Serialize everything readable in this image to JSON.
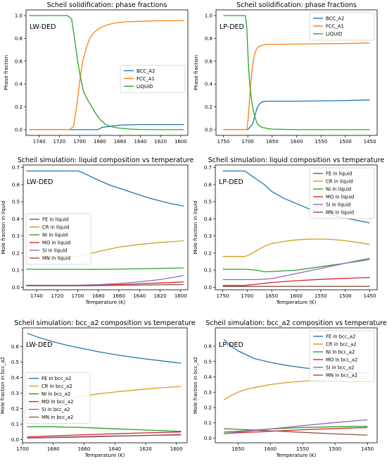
{
  "colors": {
    "blue": "#1f77b4",
    "orange": "#ff7f0e",
    "green": "#2ca02c",
    "red": "#d62728",
    "purple": "#9467bd",
    "brown": "#8c564b",
    "gold": "#d4a017"
  },
  "chart_data": [
    {
      "type": "line",
      "title": "Scheil solidification: phase fractions",
      "xlabel": "",
      "ylabel": "Phase fraction",
      "annotation": "LW-DED",
      "xlim": [
        1753,
        1593
      ],
      "ylim": [
        -0.05,
        1.05
      ],
      "x_reversed": true,
      "xticks": [
        1740,
        1720,
        1700,
        1680,
        1660,
        1640,
        1620,
        1600
      ],
      "yticks": [
        0.0,
        0.2,
        0.4,
        0.6,
        0.8,
        1.0
      ],
      "ytick_decimals": 1,
      "legend": "right",
      "series": [
        {
          "name": "BCC_A2",
          "color": "#1f77b4",
          "x": [
            1750,
            1700,
            1690,
            1682,
            1678,
            1670,
            1660,
            1640,
            1620,
            1600,
            1597
          ],
          "y": [
            0,
            0,
            0,
            0,
            0.02,
            0.03,
            0.04,
            0.045,
            0.045,
            0.045,
            0.045
          ]
        },
        {
          "name": "FCC_A1",
          "color": "#ff7f0e",
          "x": [
            1750,
            1710,
            1706,
            1703,
            1700,
            1697,
            1693,
            1690,
            1686,
            1682,
            1678,
            1672,
            1665,
            1655,
            1640,
            1620,
            1600,
            1597
          ],
          "y": [
            0,
            0,
            0.03,
            0.2,
            0.42,
            0.6,
            0.73,
            0.8,
            0.85,
            0.88,
            0.9,
            0.92,
            0.935,
            0.945,
            0.95,
            0.955,
            0.955,
            0.955
          ]
        },
        {
          "name": "LIQUID",
          "color": "#2ca02c",
          "x": [
            1750,
            1712,
            1708,
            1705,
            1702,
            1699,
            1696,
            1692,
            1688,
            1684,
            1680,
            1675,
            1670,
            1662,
            1650,
            1640,
            1620,
            1600,
            1597
          ],
          "y": [
            1.0,
            1.0,
            0.97,
            0.8,
            0.6,
            0.45,
            0.33,
            0.26,
            0.2,
            0.14,
            0.09,
            0.05,
            0.03,
            0.015,
            0.005,
            0.002,
            0.0,
            0.0,
            0.0
          ]
        }
      ]
    },
    {
      "type": "line",
      "title": "Scheil solidification: phase fractions",
      "xlabel": "",
      "ylabel": "Phase fraction",
      "annotation": "LP-DED",
      "xlim": [
        1765,
        1435
      ],
      "ylim": [
        -0.05,
        1.05
      ],
      "x_reversed": true,
      "xticks": [
        1750,
        1700,
        1650,
        1600,
        1550,
        1500,
        1450
      ],
      "yticks": [
        0.0,
        0.2,
        0.4,
        0.6,
        0.8,
        1.0
      ],
      "ytick_decimals": 1,
      "legend": "top-right",
      "series": [
        {
          "name": "BCC_A2",
          "color": "#1f77b4",
          "x": [
            1750,
            1700,
            1690,
            1685,
            1680,
            1675,
            1670,
            1660,
            1600,
            1500,
            1450
          ],
          "y": [
            0,
            0,
            0.05,
            0.13,
            0.2,
            0.23,
            0.245,
            0.25,
            0.25,
            0.255,
            0.26
          ]
        },
        {
          "name": "FCC_A1",
          "color": "#ff7f0e",
          "x": [
            1750,
            1702,
            1699,
            1696,
            1692,
            1688,
            1684,
            1680,
            1675,
            1665,
            1650,
            1600,
            1500,
            1450
          ],
          "y": [
            0,
            0,
            0.1,
            0.3,
            0.5,
            0.62,
            0.69,
            0.72,
            0.735,
            0.745,
            0.748,
            0.75,
            0.755,
            0.76
          ]
        },
        {
          "name": "LIQUID",
          "color": "#2ca02c",
          "x": [
            1750,
            1705,
            1702,
            1699,
            1696,
            1692,
            1688,
            1684,
            1680,
            1675,
            1670,
            1660,
            1650,
            1600,
            1500,
            1450
          ],
          "y": [
            1.0,
            1.0,
            0.9,
            0.6,
            0.4,
            0.25,
            0.15,
            0.09,
            0.05,
            0.03,
            0.02,
            0.01,
            0.005,
            0.0,
            0.0,
            0.0
          ]
        }
      ]
    },
    {
      "type": "line",
      "title": "Scheil simulation: liquid composition vs temperature",
      "xlabel": "Temperature (K)",
      "ylabel": "Mole fraction in liquid",
      "annotation": "LW-DED",
      "xlim": [
        1753,
        1593
      ],
      "ylim": [
        -0.015,
        0.715
      ],
      "x_reversed": true,
      "xticks": [
        1740,
        1720,
        1700,
        1680,
        1660,
        1640,
        1620,
        1600
      ],
      "yticks": [
        0.0,
        0.1,
        0.2,
        0.3,
        0.4,
        0.5,
        0.6,
        0.7
      ],
      "ytick_decimals": 1,
      "legend": "center-left",
      "series": [
        {
          "name": "FE in liquid",
          "color": "#1f77b4",
          "x": [
            1750,
            1700,
            1695,
            1685,
            1670,
            1650,
            1630,
            1610,
            1597
          ],
          "y": [
            0.68,
            0.68,
            0.67,
            0.64,
            0.6,
            0.56,
            0.52,
            0.49,
            0.475
          ]
        },
        {
          "name": "CR in liquid",
          "color": "#d4a017",
          "x": [
            1750,
            1700,
            1690,
            1675,
            1660,
            1640,
            1620,
            1600,
            1597
          ],
          "y": [
            0.18,
            0.18,
            0.195,
            0.215,
            0.235,
            0.25,
            0.262,
            0.27,
            0.272
          ]
        },
        {
          "name": "NI in liquid",
          "color": "#2ca02c",
          "x": [
            1750,
            1700,
            1690,
            1670,
            1650,
            1630,
            1610,
            1597
          ],
          "y": [
            0.105,
            0.105,
            0.104,
            0.105,
            0.107,
            0.109,
            0.111,
            0.113
          ]
        },
        {
          "name": "MO in liquid",
          "color": "#d62728",
          "x": [
            1750,
            1700,
            1680,
            1660,
            1640,
            1620,
            1600,
            1597
          ],
          "y": [
            0.01,
            0.01,
            0.012,
            0.015,
            0.02,
            0.025,
            0.03,
            0.032
          ]
        },
        {
          "name": "SI in liquid",
          "color": "#9467bd",
          "x": [
            1750,
            1700,
            1680,
            1660,
            1640,
            1620,
            1600,
            1597
          ],
          "y": [
            0.012,
            0.012,
            0.015,
            0.022,
            0.032,
            0.045,
            0.065,
            0.07
          ]
        },
        {
          "name": "MN in liquid",
          "color": "#8c564b",
          "x": [
            1750,
            1700,
            1650,
            1597
          ],
          "y": [
            0.008,
            0.008,
            0.012,
            0.016
          ]
        }
      ]
    },
    {
      "type": "line",
      "title": "Scheil simulation: liquid composition vs temperature",
      "xlabel": "Temperature (K)",
      "ylabel": "Mole fraction in liquid",
      "annotation": "LP-DED",
      "xlim": [
        1765,
        1435
      ],
      "ylim": [
        -0.015,
        0.715
      ],
      "x_reversed": true,
      "xticks": [
        1750,
        1700,
        1650,
        1600,
        1550,
        1500,
        1450
      ],
      "yticks": [
        0.0,
        0.1,
        0.2,
        0.3,
        0.4,
        0.5,
        0.6,
        0.7
      ],
      "ytick_decimals": 1,
      "legend": "top-right",
      "series": [
        {
          "name": "FE in liquid",
          "color": "#1f77b4",
          "x": [
            1750,
            1705,
            1695,
            1680,
            1665,
            1650,
            1625,
            1600,
            1575,
            1550,
            1525,
            1500,
            1475,
            1450
          ],
          "y": [
            0.68,
            0.68,
            0.66,
            0.63,
            0.6,
            0.56,
            0.52,
            0.49,
            0.46,
            0.44,
            0.42,
            0.405,
            0.39,
            0.377
          ]
        },
        {
          "name": "CR in liquid",
          "color": "#d4a017",
          "x": [
            1750,
            1705,
            1695,
            1680,
            1665,
            1650,
            1625,
            1600,
            1575,
            1550,
            1525,
            1500,
            1475,
            1450
          ],
          "y": [
            0.18,
            0.18,
            0.19,
            0.215,
            0.24,
            0.255,
            0.268,
            0.277,
            0.281,
            0.282,
            0.279,
            0.272,
            0.262,
            0.25
          ]
        },
        {
          "name": "NI in liquid",
          "color": "#2ca02c",
          "x": [
            1750,
            1705,
            1680,
            1665,
            1650,
            1600,
            1550,
            1500,
            1450
          ],
          "y": [
            0.105,
            0.105,
            0.1,
            0.09,
            0.092,
            0.1,
            0.12,
            0.14,
            0.162
          ]
        },
        {
          "name": "MO in liquid",
          "color": "#d62728",
          "x": [
            1750,
            1705,
            1680,
            1650,
            1600,
            1550,
            1500,
            1450
          ],
          "y": [
            0.01,
            0.01,
            0.018,
            0.028,
            0.038,
            0.046,
            0.052,
            0.057
          ]
        },
        {
          "name": "SI in liquid",
          "color": "#9467bd",
          "x": [
            1750,
            1705,
            1680,
            1650,
            1600,
            1550,
            1500,
            1450
          ],
          "y": [
            0.045,
            0.045,
            0.045,
            0.05,
            0.08,
            0.11,
            0.14,
            0.17
          ]
        },
        {
          "name": "MN in liquid",
          "color": "#8c564b",
          "x": [
            1750,
            1705,
            1650,
            1600,
            1550,
            1500,
            1450
          ],
          "y": [
            0.005,
            0.005,
            0.005,
            0.005,
            0.005,
            0.005,
            0.005
          ]
        }
      ]
    },
    {
      "type": "line",
      "title": "Scheil simulation: bcc_a2 composition vs temperature",
      "xlabel": "Temperature (K)",
      "ylabel": "Mole fraction in bcc_a2",
      "annotation": "LW-DED",
      "xlim": [
        1700,
        1593
      ],
      "ylim": [
        -0.02,
        0.72
      ],
      "x_reversed": true,
      "xticks": [
        1700,
        1680,
        1660,
        1640,
        1620,
        1600
      ],
      "yticks": [
        0.0,
        0.1,
        0.2,
        0.3,
        0.4,
        0.5,
        0.6
      ],
      "ytick_decimals": 1,
      "legend": "center-left",
      "series": [
        {
          "name": "FE in bcc_a2",
          "color": "#1f77b4",
          "x": [
            1697,
            1690,
            1680,
            1670,
            1660,
            1650,
            1640,
            1630,
            1620,
            1610,
            1600,
            1597
          ],
          "y": [
            0.685,
            0.66,
            0.63,
            0.605,
            0.585,
            0.565,
            0.548,
            0.533,
            0.52,
            0.508,
            0.496,
            0.492
          ]
        },
        {
          "name": "CR in bcc_a2",
          "color": "#d4a017",
          "x": [
            1697,
            1690,
            1680,
            1670,
            1660,
            1650,
            1640,
            1630,
            1620,
            1610,
            1600,
            1597
          ],
          "y": [
            0.2,
            0.225,
            0.25,
            0.268,
            0.283,
            0.296,
            0.307,
            0.317,
            0.326,
            0.334,
            0.341,
            0.343
          ]
        },
        {
          "name": "NI in bcc_a2",
          "color": "#2ca02c",
          "x": [
            1697,
            1680,
            1660,
            1640,
            1620,
            1600,
            1597
          ],
          "y": [
            0.083,
            0.083,
            0.078,
            0.07,
            0.062,
            0.055,
            0.054
          ]
        },
        {
          "name": "MO in bcc_a2",
          "color": "#d62728",
          "x": [
            1697,
            1680,
            1660,
            1640,
            1620,
            1600,
            1597
          ],
          "y": [
            0.018,
            0.025,
            0.032,
            0.038,
            0.044,
            0.049,
            0.05
          ]
        },
        {
          "name": "SI in bcc_a2",
          "color": "#9467bd",
          "x": [
            1697,
            1680,
            1660,
            1640,
            1620,
            1600,
            1597
          ],
          "y": [
            0.01,
            0.013,
            0.017,
            0.022,
            0.027,
            0.033,
            0.034
          ]
        },
        {
          "name": "MN in bcc_a2",
          "color": "#8c564b",
          "x": [
            1697,
            1680,
            1660,
            1640,
            1620,
            1600,
            1597
          ],
          "y": [
            0.012,
            0.016,
            0.02,
            0.024,
            0.027,
            0.03,
            0.031
          ]
        }
      ]
    },
    {
      "type": "line",
      "title": "Scheil simulation: bcc_a2 composition vs temperature",
      "xlabel": "Temperature (K)",
      "ylabel": "Mole fraction in bcc_a2",
      "annotation": "LP-DED",
      "xlim": [
        1685,
        1435
      ],
      "ylim": [
        -0.03,
        0.72
      ],
      "x_reversed": true,
      "xticks": [
        1650,
        1600,
        1550,
        1500,
        1450
      ],
      "yticks": [
        0.0,
        0.1,
        0.2,
        0.3,
        0.4,
        0.5,
        0.6
      ],
      "ytick_decimals": 1,
      "legend": "top-right",
      "series": [
        {
          "name": "FE in bcc_a2",
          "color": "#1f77b4",
          "x": [
            1672,
            1660,
            1650,
            1640,
            1625,
            1600,
            1575,
            1550,
            1525,
            1500,
            1475,
            1450
          ],
          "y": [
            0.645,
            0.6,
            0.57,
            0.55,
            0.52,
            0.495,
            0.475,
            0.46,
            0.448,
            0.438,
            0.43,
            0.425
          ]
        },
        {
          "name": "CR in bcc_a2",
          "color": "#d4a017",
          "x": [
            1672,
            1660,
            1650,
            1640,
            1625,
            1600,
            1575,
            1550,
            1525,
            1500,
            1475,
            1450
          ],
          "y": [
            0.25,
            0.28,
            0.3,
            0.315,
            0.33,
            0.35,
            0.363,
            0.372,
            0.379,
            0.384,
            0.387,
            0.39
          ]
        },
        {
          "name": "NI in bcc_a2",
          "color": "#2ca02c",
          "x": [
            1672,
            1650,
            1600,
            1550,
            1500,
            1450
          ],
          "y": [
            0.04,
            0.045,
            0.06,
            0.07,
            0.075,
            0.078
          ]
        },
        {
          "name": "MO in bcc_a2",
          "color": "#d62728",
          "x": [
            1672,
            1650,
            1600,
            1550,
            1500,
            1450
          ],
          "y": [
            0.03,
            0.035,
            0.045,
            0.055,
            0.063,
            0.07
          ]
        },
        {
          "name": "SI in bcc_a2",
          "color": "#9467bd",
          "x": [
            1672,
            1650,
            1600,
            1550,
            1500,
            1450
          ],
          "y": [
            0.03,
            0.04,
            0.06,
            0.082,
            0.102,
            0.12
          ]
        },
        {
          "name": "MN in bcc_a2",
          "color": "#8c564b",
          "x": [
            1672,
            1650,
            1600,
            1550,
            1500,
            1450
          ],
          "y": [
            0.062,
            0.058,
            0.048,
            0.038,
            0.028,
            0.02
          ]
        }
      ]
    }
  ]
}
